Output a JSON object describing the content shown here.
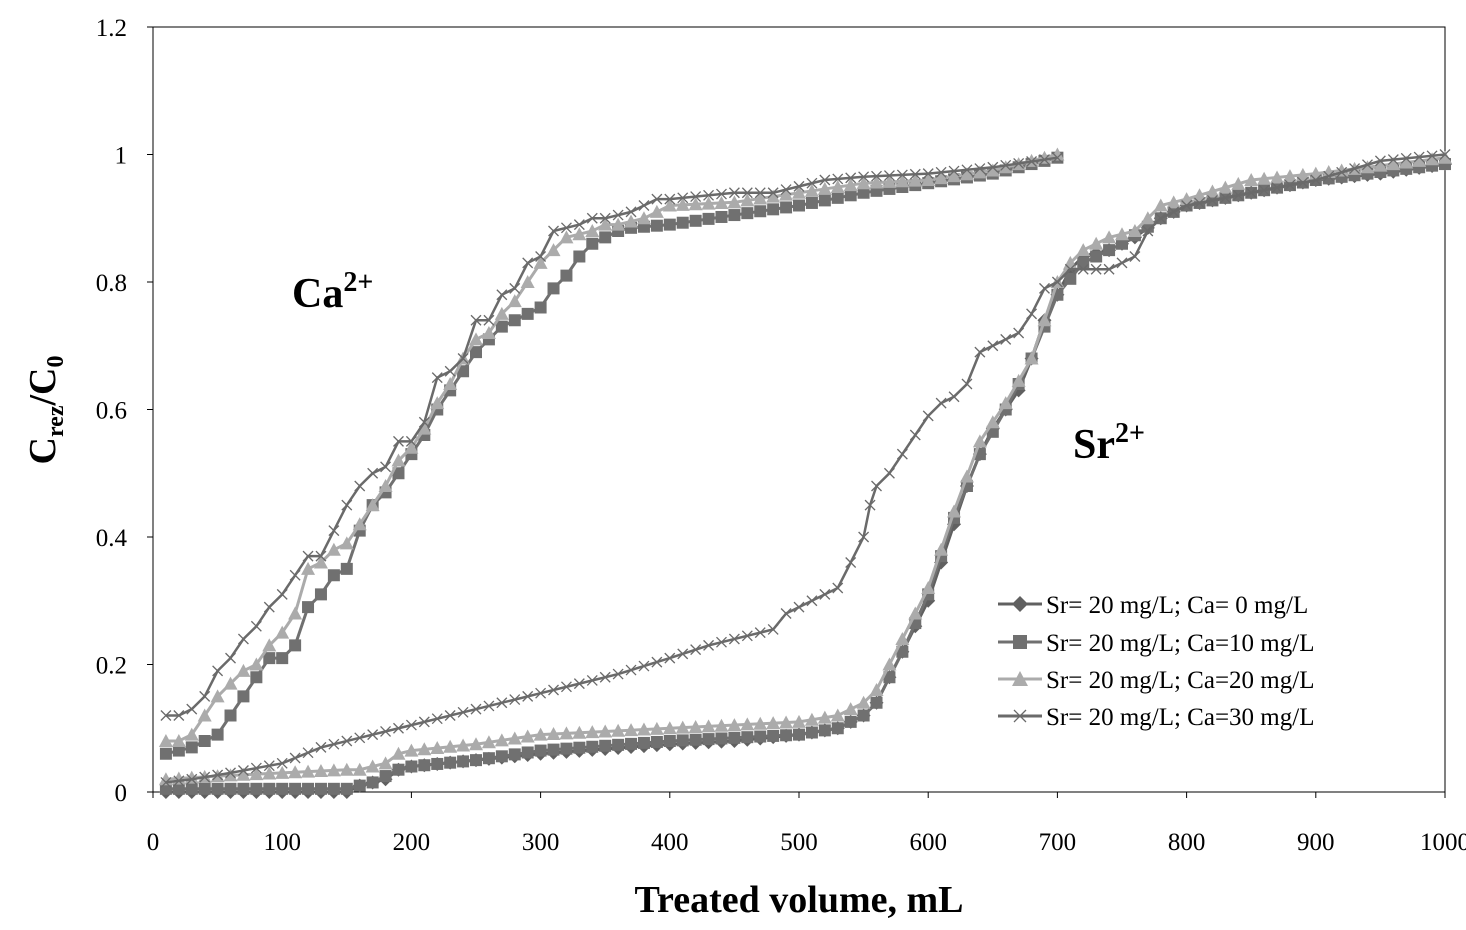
{
  "chart_data": {
    "type": "line",
    "title": "",
    "xlabel": "Treated volume, mL",
    "ylabel": {
      "main": "C",
      "sub1": "rez",
      "sep": "/C",
      "sub2": "0"
    },
    "xlim": [
      0,
      1000
    ],
    "ylim": [
      0,
      1.2
    ],
    "x_ticks": [
      "0",
      "100",
      "200",
      "300",
      "400",
      "500",
      "600",
      "700",
      "800",
      "900",
      "1000"
    ],
    "y_ticks": [
      "0",
      "0.2",
      "0.4",
      "0.6",
      "0.8",
      "1",
      "1.2"
    ],
    "grid": false,
    "legend_position": "bottom-right",
    "annotations": [
      {
        "text": "Ca",
        "sup": "2+",
        "x": 108,
        "y": 0.79
      },
      {
        "text": "Sr",
        "sup": "2+",
        "x": 712,
        "y": 0.54
      }
    ],
    "series": [
      {
        "name": "Sr= 20 mg/L;  Ca= 0 mg/L",
        "color": "#606060",
        "marker": "diamond",
        "ca_curve": [],
        "sr_curve": [
          [
            10,
            0
          ],
          [
            20,
            0
          ],
          [
            40,
            0
          ],
          [
            60,
            0
          ],
          [
            80,
            0
          ],
          [
            100,
            0
          ],
          [
            120,
            0
          ],
          [
            140,
            0
          ],
          [
            150,
            0
          ],
          [
            160,
            0.01
          ],
          [
            170,
            0.015
          ],
          [
            180,
            0.02
          ],
          [
            190,
            0.035
          ],
          [
            200,
            0.04
          ],
          [
            250,
            0.05
          ],
          [
            300,
            0.06
          ],
          [
            400,
            0.075
          ],
          [
            450,
            0.08
          ],
          [
            500,
            0.09
          ],
          [
            530,
            0.1
          ],
          [
            540,
            0.11
          ],
          [
            550,
            0.12
          ],
          [
            560,
            0.14
          ],
          [
            570,
            0.18
          ],
          [
            580,
            0.22
          ],
          [
            590,
            0.26
          ],
          [
            600,
            0.3
          ],
          [
            610,
            0.36
          ],
          [
            620,
            0.42
          ],
          [
            630,
            0.48
          ],
          [
            640,
            0.53
          ],
          [
            650,
            0.57
          ],
          [
            660,
            0.6
          ],
          [
            670,
            0.63
          ],
          [
            680,
            0.68
          ],
          [
            690,
            0.74
          ],
          [
            700,
            0.78
          ],
          [
            710,
            0.82
          ],
          [
            720,
            0.84
          ],
          [
            740,
            0.85
          ],
          [
            760,
            0.87
          ],
          [
            780,
            0.9
          ],
          [
            800,
            0.92
          ],
          [
            850,
            0.94
          ],
          [
            900,
            0.96
          ],
          [
            950,
            0.97
          ],
          [
            1000,
            0.985
          ]
        ]
      },
      {
        "name": "Sr= 20 mg/L;  Ca=10 mg/L",
        "color": "#707070",
        "marker": "square",
        "ca_curve": [
          [
            10,
            0.06
          ],
          [
            20,
            0.065
          ],
          [
            30,
            0.07
          ],
          [
            40,
            0.08
          ],
          [
            50,
            0.09
          ],
          [
            60,
            0.12
          ],
          [
            70,
            0.15
          ],
          [
            80,
            0.18
          ],
          [
            90,
            0.21
          ],
          [
            100,
            0.21
          ],
          [
            110,
            0.23
          ],
          [
            120,
            0.29
          ],
          [
            130,
            0.31
          ],
          [
            140,
            0.34
          ],
          [
            150,
            0.35
          ],
          [
            160,
            0.41
          ],
          [
            170,
            0.45
          ],
          [
            180,
            0.47
          ],
          [
            190,
            0.5
          ],
          [
            200,
            0.53
          ],
          [
            210,
            0.56
          ],
          [
            220,
            0.6
          ],
          [
            230,
            0.63
          ],
          [
            240,
            0.66
          ],
          [
            250,
            0.69
          ],
          [
            260,
            0.71
          ],
          [
            270,
            0.73
          ],
          [
            280,
            0.74
          ],
          [
            290,
            0.75
          ],
          [
            300,
            0.76
          ],
          [
            310,
            0.79
          ],
          [
            320,
            0.81
          ],
          [
            330,
            0.84
          ],
          [
            340,
            0.86
          ],
          [
            350,
            0.87
          ],
          [
            360,
            0.88
          ],
          [
            370,
            0.885
          ],
          [
            400,
            0.89
          ],
          [
            450,
            0.905
          ],
          [
            500,
            0.92
          ],
          [
            550,
            0.94
          ],
          [
            600,
            0.955
          ],
          [
            650,
            0.97
          ],
          [
            700,
            0.995
          ]
        ],
        "sr_curve": [
          [
            10,
            0.005
          ],
          [
            50,
            0.005
          ],
          [
            100,
            0.005
          ],
          [
            150,
            0.005
          ],
          [
            170,
            0.015
          ],
          [
            190,
            0.035
          ],
          [
            200,
            0.04
          ],
          [
            250,
            0.05
          ],
          [
            300,
            0.065
          ],
          [
            400,
            0.08
          ],
          [
            500,
            0.09
          ],
          [
            530,
            0.1
          ],
          [
            550,
            0.12
          ],
          [
            560,
            0.14
          ],
          [
            580,
            0.22
          ],
          [
            600,
            0.31
          ],
          [
            620,
            0.43
          ],
          [
            640,
            0.53
          ],
          [
            660,
            0.6
          ],
          [
            680,
            0.68
          ],
          [
            700,
            0.78
          ],
          [
            720,
            0.83
          ],
          [
            750,
            0.86
          ],
          [
            780,
            0.9
          ],
          [
            800,
            0.92
          ],
          [
            850,
            0.94
          ],
          [
            900,
            0.96
          ],
          [
            1000,
            0.985
          ]
        ]
      },
      {
        "name": "Sr= 20 mg/L;  Ca=20 mg/L",
        "color": "#ababab",
        "marker": "triangle",
        "ca_curve": [
          [
            10,
            0.08
          ],
          [
            20,
            0.08
          ],
          [
            30,
            0.09
          ],
          [
            40,
            0.12
          ],
          [
            50,
            0.15
          ],
          [
            60,
            0.17
          ],
          [
            70,
            0.19
          ],
          [
            80,
            0.2
          ],
          [
            90,
            0.23
          ],
          [
            100,
            0.25
          ],
          [
            110,
            0.28
          ],
          [
            120,
            0.35
          ],
          [
            130,
            0.36
          ],
          [
            140,
            0.38
          ],
          [
            150,
            0.39
          ],
          [
            160,
            0.42
          ],
          [
            170,
            0.45
          ],
          [
            180,
            0.48
          ],
          [
            190,
            0.52
          ],
          [
            200,
            0.54
          ],
          [
            210,
            0.57
          ],
          [
            220,
            0.61
          ],
          [
            230,
            0.64
          ],
          [
            240,
            0.68
          ],
          [
            250,
            0.71
          ],
          [
            260,
            0.72
          ],
          [
            270,
            0.75
          ],
          [
            280,
            0.77
          ],
          [
            290,
            0.8
          ],
          [
            300,
            0.83
          ],
          [
            310,
            0.85
          ],
          [
            320,
            0.87
          ],
          [
            330,
            0.875
          ],
          [
            340,
            0.88
          ],
          [
            350,
            0.89
          ],
          [
            360,
            0.89
          ],
          [
            380,
            0.9
          ],
          [
            400,
            0.92
          ],
          [
            450,
            0.925
          ],
          [
            500,
            0.94
          ],
          [
            550,
            0.955
          ],
          [
            600,
            0.96
          ],
          [
            650,
            0.975
          ],
          [
            700,
            1.0
          ]
        ],
        "sr_curve": [
          [
            10,
            0.02
          ],
          [
            50,
            0.025
          ],
          [
            100,
            0.03
          ],
          [
            150,
            0.035
          ],
          [
            160,
            0.035
          ],
          [
            170,
            0.04
          ],
          [
            180,
            0.045
          ],
          [
            190,
            0.06
          ],
          [
            200,
            0.065
          ],
          [
            250,
            0.075
          ],
          [
            300,
            0.09
          ],
          [
            400,
            0.1
          ],
          [
            500,
            0.11
          ],
          [
            530,
            0.12
          ],
          [
            550,
            0.14
          ],
          [
            560,
            0.16
          ],
          [
            580,
            0.24
          ],
          [
            600,
            0.32
          ],
          [
            620,
            0.44
          ],
          [
            640,
            0.55
          ],
          [
            660,
            0.61
          ],
          [
            680,
            0.68
          ],
          [
            700,
            0.8
          ],
          [
            710,
            0.83
          ],
          [
            720,
            0.85
          ],
          [
            740,
            0.87
          ],
          [
            760,
            0.88
          ],
          [
            780,
            0.92
          ],
          [
            800,
            0.93
          ],
          [
            850,
            0.96
          ],
          [
            900,
            0.97
          ],
          [
            1000,
            0.995
          ]
        ]
      },
      {
        "name": "Sr= 20 mg/L;  Ca=30 mg/L",
        "color": "#6a6a6a",
        "marker": "x",
        "ca_curve": [
          [
            10,
            0.12
          ],
          [
            20,
            0.12
          ],
          [
            30,
            0.13
          ],
          [
            40,
            0.15
          ],
          [
            50,
            0.19
          ],
          [
            60,
            0.21
          ],
          [
            70,
            0.24
          ],
          [
            80,
            0.26
          ],
          [
            90,
            0.29
          ],
          [
            100,
            0.31
          ],
          [
            110,
            0.34
          ],
          [
            120,
            0.37
          ],
          [
            130,
            0.37
          ],
          [
            140,
            0.41
          ],
          [
            150,
            0.45
          ],
          [
            160,
            0.48
          ],
          [
            170,
            0.5
          ],
          [
            180,
            0.51
          ],
          [
            190,
            0.55
          ],
          [
            200,
            0.55
          ],
          [
            210,
            0.58
          ],
          [
            220,
            0.65
          ],
          [
            230,
            0.66
          ],
          [
            240,
            0.68
          ],
          [
            250,
            0.74
          ],
          [
            260,
            0.74
          ],
          [
            270,
            0.78
          ],
          [
            280,
            0.79
          ],
          [
            290,
            0.83
          ],
          [
            300,
            0.84
          ],
          [
            310,
            0.88
          ],
          [
            320,
            0.885
          ],
          [
            330,
            0.89
          ],
          [
            340,
            0.9
          ],
          [
            350,
            0.9
          ],
          [
            360,
            0.905
          ],
          [
            370,
            0.91
          ],
          [
            380,
            0.92
          ],
          [
            390,
            0.93
          ],
          [
            400,
            0.93
          ],
          [
            450,
            0.94
          ],
          [
            480,
            0.94
          ],
          [
            500,
            0.95
          ],
          [
            520,
            0.96
          ],
          [
            550,
            0.965
          ],
          [
            600,
            0.97
          ],
          [
            650,
            0.98
          ],
          [
            700,
            0.995
          ]
        ],
        "sr_curve": [
          [
            10,
            0.015
          ],
          [
            30,
            0.02
          ],
          [
            60,
            0.03
          ],
          [
            100,
            0.045
          ],
          [
            130,
            0.07
          ],
          [
            160,
            0.085
          ],
          [
            200,
            0.105
          ],
          [
            240,
            0.125
          ],
          [
            280,
            0.145
          ],
          [
            300,
            0.155
          ],
          [
            330,
            0.17
          ],
          [
            360,
            0.185
          ],
          [
            400,
            0.21
          ],
          [
            430,
            0.23
          ],
          [
            460,
            0.245
          ],
          [
            480,
            0.255
          ],
          [
            490,
            0.28
          ],
          [
            500,
            0.29
          ],
          [
            510,
            0.3
          ],
          [
            530,
            0.32
          ],
          [
            540,
            0.36
          ],
          [
            550,
            0.4
          ],
          [
            555,
            0.45
          ],
          [
            560,
            0.48
          ],
          [
            570,
            0.5
          ],
          [
            580,
            0.53
          ],
          [
            590,
            0.56
          ],
          [
            600,
            0.59
          ],
          [
            610,
            0.61
          ],
          [
            620,
            0.62
          ],
          [
            630,
            0.64
          ],
          [
            640,
            0.69
          ],
          [
            650,
            0.7
          ],
          [
            660,
            0.71
          ],
          [
            670,
            0.72
          ],
          [
            680,
            0.75
          ],
          [
            690,
            0.79
          ],
          [
            700,
            0.8
          ],
          [
            710,
            0.82
          ],
          [
            720,
            0.82
          ],
          [
            740,
            0.82
          ],
          [
            760,
            0.84
          ],
          [
            770,
            0.88
          ],
          [
            780,
            0.9
          ],
          [
            800,
            0.92
          ],
          [
            850,
            0.94
          ],
          [
            900,
            0.96
          ],
          [
            950,
            0.99
          ],
          [
            1000,
            1.0
          ]
        ]
      }
    ]
  }
}
